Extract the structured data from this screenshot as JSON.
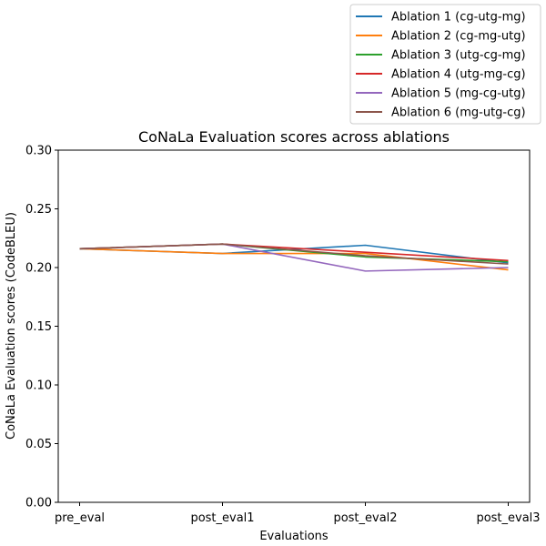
{
  "chart_data": {
    "type": "line",
    "title": "CoNaLa Evaluation scores across ablations",
    "xlabel": "Evaluations",
    "ylabel": "CoNaLa Evaluation scores (CodeBLEU)",
    "categories": [
      "pre_eval",
      "post_eval1",
      "post_eval2",
      "post_eval3"
    ],
    "ylim": [
      0.0,
      0.3
    ],
    "yticks": [
      0.0,
      0.05,
      0.1,
      0.15,
      0.2,
      0.25,
      0.3
    ],
    "ytick_labels": [
      "0.00",
      "0.05",
      "0.10",
      "0.15",
      "0.20",
      "0.25",
      "0.30"
    ],
    "grid": false,
    "legend_position": "top-right",
    "series": [
      {
        "name": "Ablation 1 (cg-utg-mg)",
        "color": "#1f77b4",
        "values": [
          0.216,
          0.212,
          0.219,
          0.204
        ]
      },
      {
        "name": "Ablation 2 (cg-mg-utg)",
        "color": "#ff7f0e",
        "values": [
          0.216,
          0.212,
          0.212,
          0.198
        ]
      },
      {
        "name": "Ablation 3 (utg-cg-mg)",
        "color": "#2ca02c",
        "values": [
          0.216,
          0.22,
          0.209,
          0.205
        ]
      },
      {
        "name": "Ablation 4 (utg-mg-cg)",
        "color": "#d62728",
        "values": [
          0.216,
          0.22,
          0.213,
          0.206
        ]
      },
      {
        "name": "Ablation 5 (mg-cg-utg)",
        "color": "#9467bd",
        "values": [
          0.216,
          0.22,
          0.197,
          0.2
        ]
      },
      {
        "name": "Ablation 6 (mg-utg-cg)",
        "color": "#8c564b",
        "values": [
          0.216,
          0.22,
          0.21,
          0.203
        ]
      }
    ]
  }
}
